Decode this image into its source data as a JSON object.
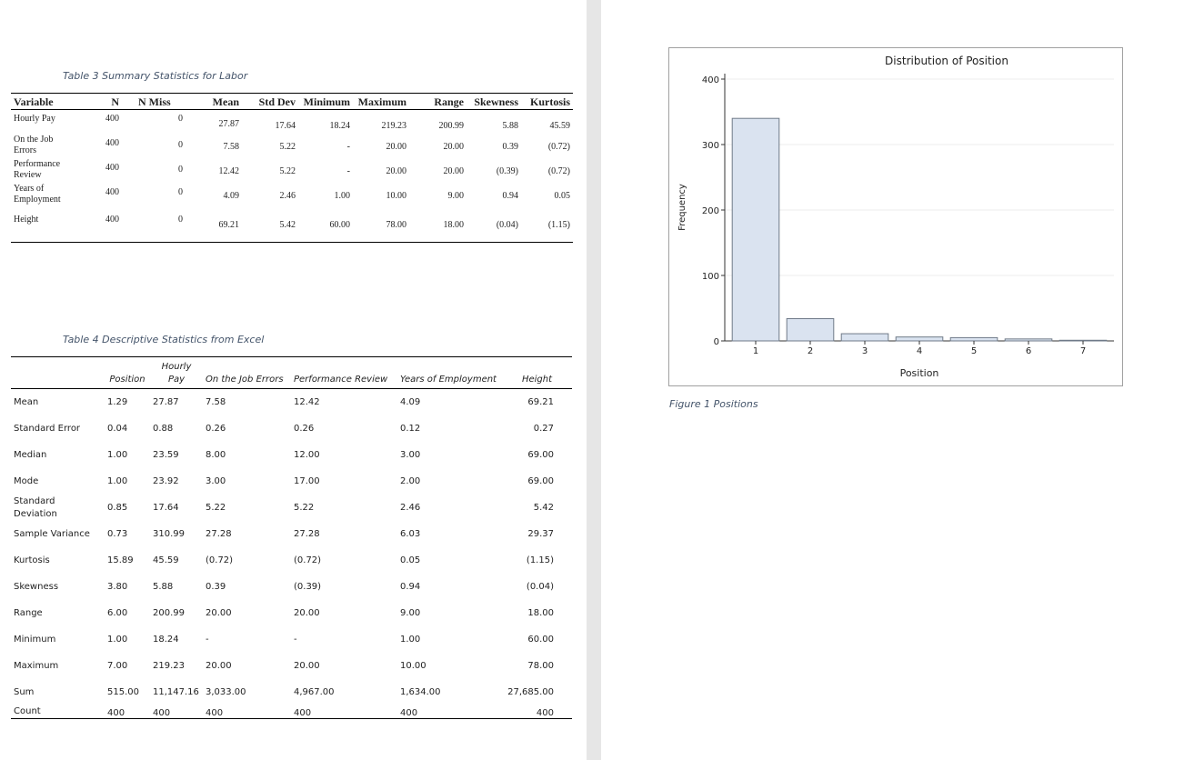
{
  "table3": {
    "caption": "Table 3 Summary Statistics for Labor",
    "headers": [
      "Variable",
      "N",
      "N Miss",
      "Mean",
      "Std Dev",
      "Minimum",
      "Maximum",
      "Range",
      "Skewness",
      "Kurtosis"
    ],
    "rows": [
      {
        "variable": "Hourly Pay",
        "n": "400",
        "nmiss": "0",
        "mean": "27.87",
        "std": "17.64",
        "min": "18.24",
        "max": "219.23",
        "range": "200.99",
        "skew": "5.88",
        "kurt": "45.59"
      },
      {
        "variable": "On the Job Errors",
        "n": "400",
        "nmiss": "0",
        "mean": "7.58",
        "std": "5.22",
        "min": "-",
        "max": "20.00",
        "range": "20.00",
        "skew": "0.39",
        "kurt": "(0.72)"
      },
      {
        "variable": "Performance Review",
        "n": "400",
        "nmiss": "0",
        "mean": "12.42",
        "std": "5.22",
        "min": "-",
        "max": "20.00",
        "range": "20.00",
        "skew": "(0.39)",
        "kurt": "(0.72)"
      },
      {
        "variable": "Years of Employment",
        "n": "400",
        "nmiss": "0",
        "mean": "4.09",
        "std": "2.46",
        "min": "1.00",
        "max": "10.00",
        "range": "9.00",
        "skew": "0.94",
        "kurt": "0.05"
      },
      {
        "variable": "Height",
        "n": "400",
        "nmiss": "0",
        "mean": "69.21",
        "std": "5.42",
        "min": "60.00",
        "max": "78.00",
        "range": "18.00",
        "skew": "(0.04)",
        "kurt": "(1.15)"
      }
    ]
  },
  "table4": {
    "caption": "Table 4 Descriptive Statistics from Excel",
    "headers": [
      "",
      "Position",
      "Hourly Pay",
      "On the Job Errors",
      "Performance Review",
      "Years of Employment",
      "Height"
    ],
    "rows": [
      {
        "label": "Mean",
        "v": [
          "1.29",
          "27.87",
          "7.58",
          "12.42",
          "4.09",
          "69.21"
        ]
      },
      {
        "label": "Standard Error",
        "v": [
          "0.04",
          "0.88",
          "0.26",
          "0.26",
          "0.12",
          "0.27"
        ]
      },
      {
        "label": "Median",
        "v": [
          "1.00",
          "23.59",
          "8.00",
          "12.00",
          "3.00",
          "69.00"
        ]
      },
      {
        "label": "Mode",
        "v": [
          "1.00",
          "23.92",
          "3.00",
          "17.00",
          "2.00",
          "69.00"
        ]
      },
      {
        "label": "Standard Deviation",
        "v": [
          "0.85",
          "17.64",
          "5.22",
          "5.22",
          "2.46",
          "5.42"
        ]
      },
      {
        "label": "Sample Variance",
        "v": [
          "0.73",
          "310.99",
          "27.28",
          "27.28",
          "6.03",
          "29.37"
        ]
      },
      {
        "label": "Kurtosis",
        "v": [
          "15.89",
          "45.59",
          "(0.72)",
          "(0.72)",
          "0.05",
          "(1.15)"
        ]
      },
      {
        "label": "Skewness",
        "v": [
          "3.80",
          "5.88",
          "0.39",
          "(0.39)",
          "0.94",
          "(0.04)"
        ]
      },
      {
        "label": "Range",
        "v": [
          "6.00",
          "200.99",
          "20.00",
          "20.00",
          "9.00",
          "18.00"
        ]
      },
      {
        "label": "Minimum",
        "v": [
          "1.00",
          "18.24",
          "-",
          "-",
          "1.00",
          "60.00"
        ]
      },
      {
        "label": "Maximum",
        "v": [
          "7.00",
          "219.23",
          "20.00",
          "20.00",
          "10.00",
          "78.00"
        ]
      },
      {
        "label": "Sum",
        "v": [
          "515.00",
          "11,147.16",
          "3,033.00",
          "4,967.00",
          "1,634.00",
          "27,685.00"
        ]
      },
      {
        "label": "Count",
        "v": [
          "400",
          "400",
          "400",
          "400",
          "400",
          "400"
        ]
      }
    ]
  },
  "figure1": {
    "caption": "Figure 1 Positions"
  },
  "chart_data": {
    "type": "bar",
    "title": "Distribution of Position",
    "xlabel": "Position",
    "ylabel": "Frequency",
    "categories": [
      "1",
      "2",
      "3",
      "4",
      "5",
      "6",
      "7"
    ],
    "values": [
      340,
      34,
      11,
      6,
      5,
      3,
      1
    ],
    "ylim": [
      0,
      400
    ],
    "yticks": [
      "0",
      "100",
      "200",
      "300",
      "400"
    ],
    "bar_fill": "#dae3f0",
    "bar_stroke": "#6f7a88",
    "grid": true
  }
}
